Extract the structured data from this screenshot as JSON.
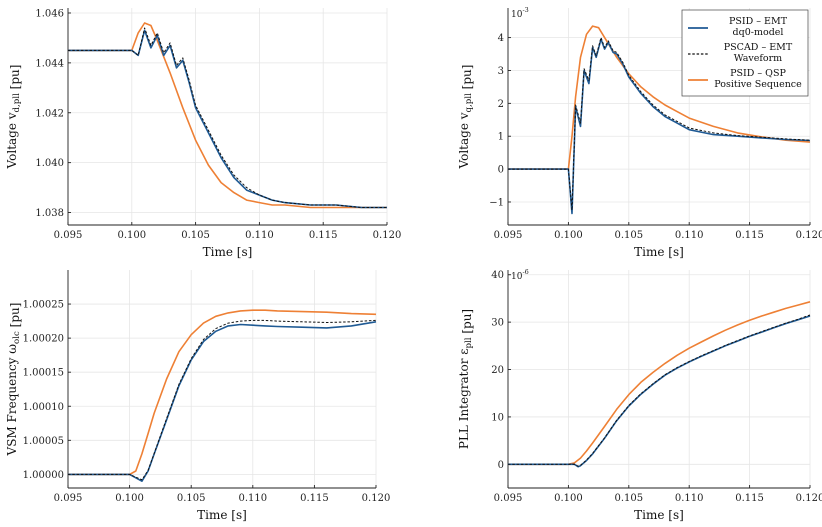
{
  "chart_data": [
    {
      "type": "line",
      "ylabel": "Voltage v_{d,pll} [pu]",
      "xlabel": "Time [s]",
      "xlim": [
        0.095,
        0.12
      ],
      "ylim": [
        1.0375,
        1.0462
      ],
      "xticks": [
        0.095,
        0.1,
        0.105,
        0.11,
        0.115,
        0.12
      ],
      "xtick_labels": [
        "0.095",
        "0.100",
        "0.105",
        "0.110",
        "0.115",
        "0.120"
      ],
      "yticks": [
        1.038,
        1.04,
        1.042,
        1.044,
        1.046
      ],
      "ytick_labels": [
        "1.038",
        "1.040",
        "1.042",
        "1.044",
        "1.046"
      ],
      "grid": true,
      "series": [
        {
          "name": "PSID – EMT dq0-model",
          "color": "#1f5a94",
          "style": "solid",
          "x": [
            0.095,
            0.1,
            0.1005,
            0.101,
            0.1015,
            0.102,
            0.1025,
            0.103,
            0.1035,
            0.104,
            0.1045,
            0.105,
            0.106,
            0.107,
            0.108,
            0.109,
            0.11,
            0.111,
            0.112,
            0.114,
            0.116,
            0.118,
            0.12
          ],
          "y": [
            1.0445,
            1.0445,
            1.0443,
            1.0453,
            1.0446,
            1.0451,
            1.0443,
            1.0447,
            1.0438,
            1.0441,
            1.0432,
            1.0422,
            1.0412,
            1.0402,
            1.0394,
            1.0389,
            1.0387,
            1.0385,
            1.0384,
            1.0383,
            1.0383,
            1.0382,
            1.0382
          ]
        },
        {
          "name": "PSCAD – EMT Waveform",
          "color": "#111111",
          "style": "dashed",
          "x": [
            0.095,
            0.1,
            0.1005,
            0.101,
            0.1015,
            0.102,
            0.1025,
            0.103,
            0.1035,
            0.104,
            0.1045,
            0.105,
            0.106,
            0.107,
            0.108,
            0.109,
            0.11,
            0.111,
            0.112,
            0.114,
            0.116,
            0.118,
            0.12
          ],
          "y": [
            1.0445,
            1.0445,
            1.0443,
            1.0454,
            1.0447,
            1.0452,
            1.0444,
            1.0448,
            1.0439,
            1.0442,
            1.0433,
            1.0423,
            1.0413,
            1.0403,
            1.0395,
            1.039,
            1.0387,
            1.0385,
            1.0384,
            1.0383,
            1.0383,
            1.0382,
            1.0382
          ]
        },
        {
          "name": "PSID – QSP Positive Sequence",
          "color": "#ee8035",
          "style": "solid",
          "x": [
            0.095,
            0.1,
            0.1005,
            0.101,
            0.1015,
            0.102,
            0.103,
            0.104,
            0.105,
            0.106,
            0.107,
            0.108,
            0.109,
            0.11,
            0.111,
            0.112,
            0.114,
            0.116,
            0.118,
            0.12
          ],
          "y": [
            1.0445,
            1.0445,
            1.0452,
            1.0456,
            1.0455,
            1.0449,
            1.0436,
            1.0422,
            1.0409,
            1.0399,
            1.0392,
            1.0388,
            1.0385,
            1.0384,
            1.0383,
            1.0383,
            1.0382,
            1.0382,
            1.0382,
            1.0382
          ]
        }
      ]
    },
    {
      "type": "line",
      "ylabel": "Voltage v_{q,pll} [pu]",
      "xlabel": "Time [s]",
      "exponent_label": "10^{-3}",
      "xlim": [
        0.095,
        0.12
      ],
      "ylim": [
        -1.7,
        4.9
      ],
      "xticks": [
        0.095,
        0.1,
        0.105,
        0.11,
        0.115,
        0.12
      ],
      "xtick_labels": [
        "0.095",
        "0.100",
        "0.105",
        "0.110",
        "0.115",
        "0.120"
      ],
      "yticks": [
        -1,
        0,
        1,
        2,
        3,
        4
      ],
      "ytick_labels": [
        "−1",
        "0",
        "1",
        "2",
        "3",
        "4"
      ],
      "grid": true,
      "legend": "top-right",
      "series": [
        {
          "name": "PSID – EMT dq0-model",
          "color": "#1f5a94",
          "style": "solid",
          "x": [
            0.095,
            0.1,
            0.1003,
            0.1006,
            0.101,
            0.1013,
            0.1017,
            0.102,
            0.1023,
            0.1027,
            0.103,
            0.1033,
            0.1037,
            0.104,
            0.1045,
            0.105,
            0.106,
            0.107,
            0.108,
            0.109,
            0.11,
            0.112,
            0.114,
            0.116,
            0.118,
            0.12
          ],
          "y": [
            0,
            0,
            -1.35,
            1.9,
            1.3,
            3.0,
            2.6,
            3.7,
            3.4,
            3.95,
            3.65,
            3.85,
            3.55,
            3.5,
            3.2,
            2.8,
            2.3,
            1.9,
            1.6,
            1.4,
            1.2,
            1.05,
            1.0,
            0.95,
            0.9,
            0.87
          ]
        },
        {
          "name": "PSCAD – EMT Waveform",
          "color": "#111111",
          "style": "dashed",
          "x": [
            0.095,
            0.1,
            0.1003,
            0.1006,
            0.101,
            0.1013,
            0.1017,
            0.102,
            0.1023,
            0.1027,
            0.103,
            0.1033,
            0.1037,
            0.104,
            0.1045,
            0.105,
            0.106,
            0.107,
            0.108,
            0.109,
            0.11,
            0.112,
            0.114,
            0.116,
            0.118,
            0.12
          ],
          "y": [
            0,
            0,
            -1.25,
            1.95,
            1.4,
            3.05,
            2.7,
            3.75,
            3.45,
            4.0,
            3.7,
            3.9,
            3.6,
            3.55,
            3.25,
            2.85,
            2.35,
            1.95,
            1.65,
            1.45,
            1.25,
            1.1,
            1.02,
            0.97,
            0.92,
            0.88
          ]
        },
        {
          "name": "PSID – QSP Positive Sequence",
          "color": "#ee8035",
          "style": "solid",
          "x": [
            0.095,
            0.1,
            0.1003,
            0.1006,
            0.101,
            0.1015,
            0.102,
            0.1025,
            0.103,
            0.104,
            0.105,
            0.106,
            0.107,
            0.108,
            0.109,
            0.11,
            0.112,
            0.114,
            0.116,
            0.118,
            0.12
          ],
          "y": [
            0,
            0,
            1.0,
            2.2,
            3.4,
            4.1,
            4.35,
            4.3,
            4.0,
            3.4,
            2.9,
            2.5,
            2.2,
            1.95,
            1.75,
            1.55,
            1.3,
            1.1,
            0.98,
            0.88,
            0.82
          ]
        }
      ]
    },
    {
      "type": "line",
      "ylabel": "VSM Frequency ω_{olc} [pu]",
      "xlabel": "Time [s]",
      "xlim": [
        0.095,
        0.12
      ],
      "ylim": [
        0.99998,
        1.0003
      ],
      "xticks": [
        0.095,
        0.1,
        0.105,
        0.11,
        0.115,
        0.12
      ],
      "xtick_labels": [
        "0.095",
        "0.100",
        "0.105",
        "0.110",
        "0.115",
        "0.120"
      ],
      "yticks": [
        1.0,
        1.00005,
        1.0001,
        1.00015,
        1.0002,
        1.00025
      ],
      "ytick_labels": [
        "1.00000",
        "1.00005",
        "1.00010",
        "1.00015",
        "1.00020",
        "1.00025"
      ],
      "grid": true,
      "series": [
        {
          "name": "PSID – EMT dq0-model",
          "color": "#1f5a94",
          "style": "solid",
          "x": [
            0.095,
            0.1,
            0.1005,
            0.101,
            0.1015,
            0.102,
            0.103,
            0.104,
            0.105,
            0.106,
            0.107,
            0.108,
            0.109,
            0.11,
            0.111,
            0.112,
            0.114,
            0.116,
            0.118,
            0.12
          ],
          "y": [
            1.0,
            1.0,
            0.999995,
            0.99999,
            1.000005,
            1.00003,
            1.00008,
            1.00013,
            1.000168,
            1.000195,
            1.00021,
            1.000218,
            1.00022,
            1.000219,
            1.000218,
            1.000217,
            1.000216,
            1.000215,
            1.000218,
            1.000224
          ]
        },
        {
          "name": "PSCAD – EMT Waveform",
          "color": "#111111",
          "style": "dashed",
          "x": [
            0.095,
            0.1,
            0.1005,
            0.101,
            0.1015,
            0.102,
            0.103,
            0.104,
            0.105,
            0.106,
            0.107,
            0.108,
            0.109,
            0.11,
            0.111,
            0.112,
            0.114,
            0.116,
            0.118,
            0.12
          ],
          "y": [
            1.0,
            1.0,
            0.999996,
            0.999992,
            1.000006,
            1.000031,
            1.000082,
            1.000132,
            1.00017,
            1.000198,
            1.000214,
            1.000222,
            1.000225,
            1.000226,
            1.000226,
            1.000225,
            1.000224,
            1.000223,
            1.000224,
            1.000226
          ]
        },
        {
          "name": "PSID – QSP Positive Sequence",
          "color": "#ee8035",
          "style": "solid",
          "x": [
            0.095,
            0.1,
            0.1005,
            0.101,
            0.1015,
            0.102,
            0.103,
            0.104,
            0.105,
            0.106,
            0.107,
            0.108,
            0.109,
            0.11,
            0.111,
            0.112,
            0.114,
            0.116,
            0.118,
            0.12
          ],
          "y": [
            1.0,
            1.0,
            1.000005,
            1.00003,
            1.00006,
            1.00009,
            1.00014,
            1.00018,
            1.000205,
            1.000222,
            1.000232,
            1.000237,
            1.00024,
            1.000241,
            1.000241,
            1.00024,
            1.000239,
            1.000238,
            1.000236,
            1.000235
          ]
        }
      ]
    },
    {
      "type": "line",
      "ylabel": "PLL Integrator ε_{pll} [pu]",
      "xlabel": "Time [s]",
      "exponent_label": "10^{-6}",
      "xlim": [
        0.095,
        0.12
      ],
      "ylim": [
        -5,
        41
      ],
      "xticks": [
        0.095,
        0.1,
        0.105,
        0.11,
        0.115,
        0.12
      ],
      "xtick_labels": [
        "0.095",
        "0.100",
        "0.105",
        "0.110",
        "0.115",
        "0.120"
      ],
      "yticks": [
        0,
        10,
        20,
        30,
        40
      ],
      "ytick_labels": [
        "0",
        "10",
        "20",
        "30",
        "40"
      ],
      "grid": true,
      "series": [
        {
          "name": "PSID – EMT dq0-model",
          "color": "#1f5a94",
          "style": "solid",
          "x": [
            0.095,
            0.1,
            0.1005,
            0.1008,
            0.101,
            0.1015,
            0.102,
            0.103,
            0.104,
            0.105,
            0.106,
            0.107,
            0.108,
            0.109,
            0.11,
            0.111,
            0.112,
            0.113,
            0.114,
            0.115,
            0.116,
            0.117,
            0.118,
            0.119,
            0.12
          ],
          "y": [
            0,
            0,
            0,
            -0.5,
            -0.3,
            0.8,
            2.2,
            5.5,
            9.2,
            12.3,
            14.8,
            16.9,
            18.8,
            20.3,
            21.6,
            22.8,
            23.9,
            25.0,
            26.0,
            27.0,
            27.9,
            28.8,
            29.7,
            30.5,
            31.3
          ]
        },
        {
          "name": "PSCAD – EMT Waveform",
          "color": "#111111",
          "style": "dashed",
          "x": [
            0.095,
            0.1,
            0.1005,
            0.1008,
            0.101,
            0.1015,
            0.102,
            0.103,
            0.104,
            0.105,
            0.106,
            0.107,
            0.108,
            0.109,
            0.11,
            0.111,
            0.112,
            0.113,
            0.114,
            0.115,
            0.116,
            0.117,
            0.118,
            0.119,
            0.12
          ],
          "y": [
            0,
            0,
            0,
            -0.4,
            -0.2,
            0.9,
            2.3,
            5.6,
            9.3,
            12.4,
            14.9,
            17.0,
            18.9,
            20.4,
            21.7,
            22.9,
            24.0,
            25.1,
            26.1,
            27.1,
            28.0,
            28.9,
            29.8,
            30.6,
            31.5
          ]
        },
        {
          "name": "PSID – QSP Positive Sequence",
          "color": "#ee8035",
          "style": "solid",
          "x": [
            0.095,
            0.1,
            0.1005,
            0.101,
            0.1015,
            0.102,
            0.103,
            0.104,
            0.105,
            0.106,
            0.107,
            0.108,
            0.109,
            0.11,
            0.111,
            0.112,
            0.113,
            0.114,
            0.115,
            0.116,
            0.117,
            0.118,
            0.119,
            0.12
          ],
          "y": [
            0,
            0,
            0.3,
            1.3,
            2.8,
            4.5,
            8.0,
            11.6,
            14.7,
            17.3,
            19.4,
            21.3,
            23.0,
            24.5,
            25.8,
            27.1,
            28.3,
            29.4,
            30.4,
            31.3,
            32.1,
            32.9,
            33.6,
            34.3
          ]
        }
      ]
    }
  ],
  "legend": {
    "entries": [
      {
        "line1": "PSID – EMT",
        "line2": "dq0-model",
        "color": "#1f5a94",
        "style": "solid"
      },
      {
        "line1": "PSCAD – EMT",
        "line2": "Waveform",
        "color": "#111111",
        "style": "dashed"
      },
      {
        "line1": "PSID – QSP",
        "line2": "Positive Sequence",
        "color": "#ee8035",
        "style": "solid"
      }
    ]
  }
}
